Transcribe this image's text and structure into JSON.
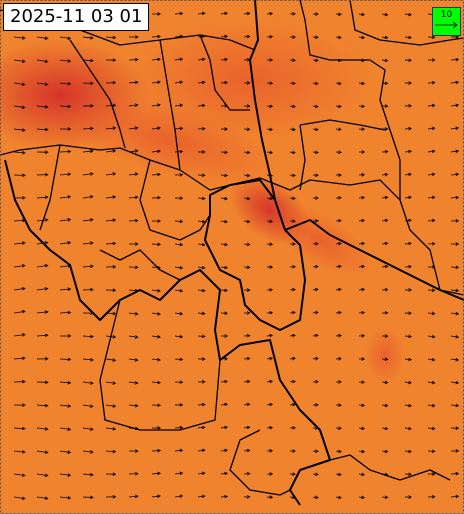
{
  "timestamp": "2025-11 03 01",
  "legend": {
    "label": "10"
  }
}
